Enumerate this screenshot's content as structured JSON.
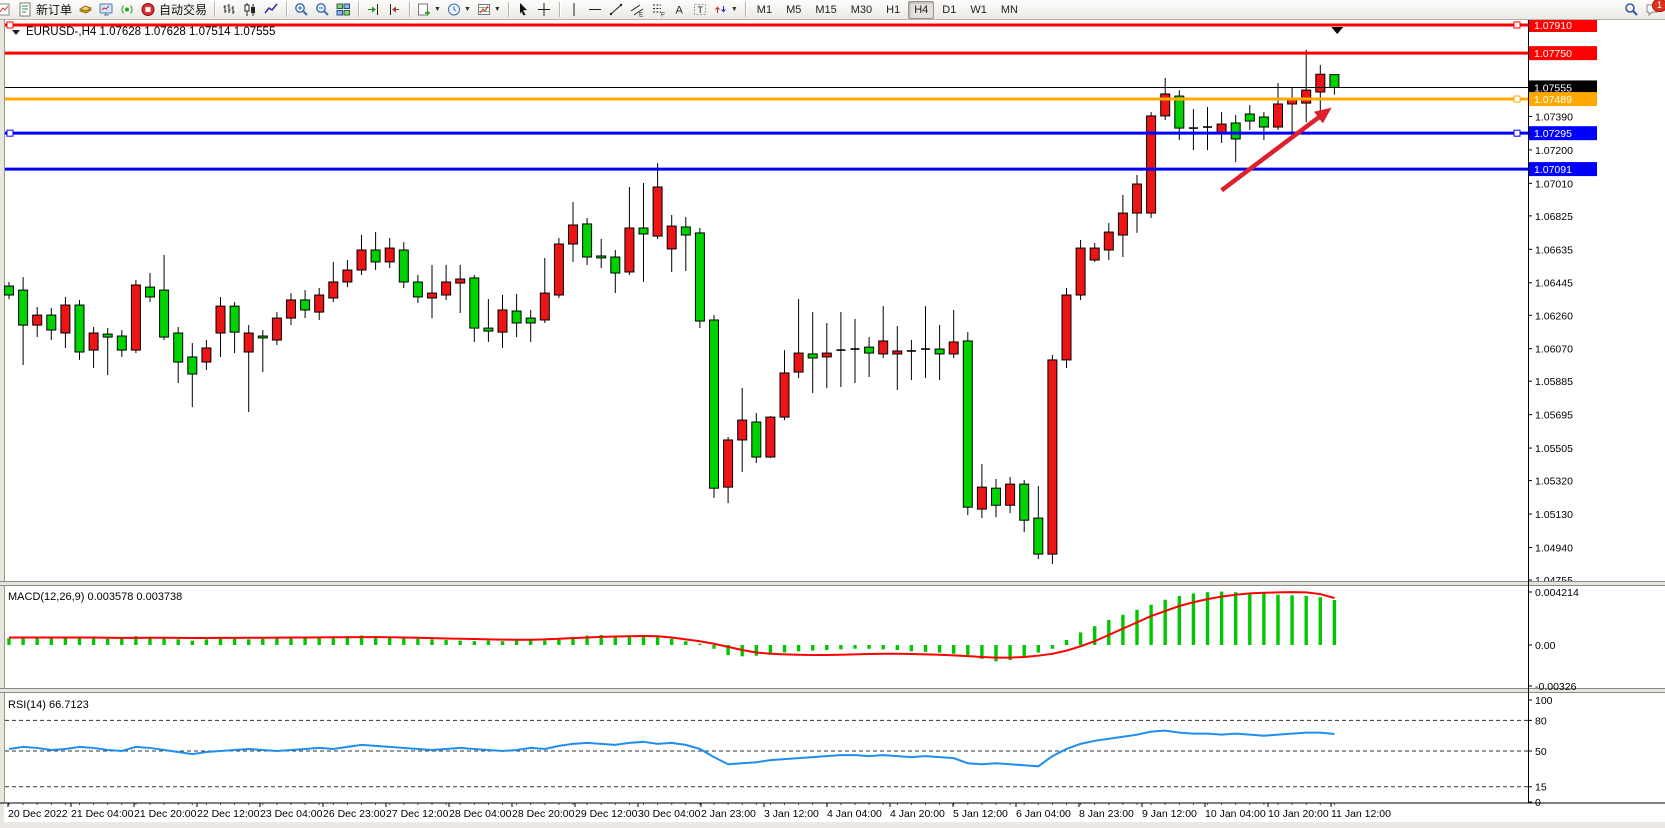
{
  "toolbar": {
    "groups": [
      {
        "items": [
          {
            "icon": "chart-doc-icon",
            "cut": true
          },
          {
            "icon": "new-order-icon",
            "label": "新订单"
          },
          {
            "icon": "new-chart-gold-icon"
          },
          {
            "icon": "market-watch-icon"
          },
          {
            "icon": "navigator-icon"
          },
          {
            "icon": "autotrading-icon",
            "label": "自动交易"
          }
        ]
      },
      {
        "items": [
          {
            "icon": "bar-chart-icon"
          },
          {
            "icon": "candle-chart-icon"
          },
          {
            "icon": "line-chart-icon"
          }
        ]
      },
      {
        "items": [
          {
            "icon": "zoom-in-icon"
          },
          {
            "icon": "zoom-out-icon"
          },
          {
            "icon": "tile-windows-icon"
          }
        ]
      },
      {
        "items": [
          {
            "icon": "auto-scroll-icon"
          },
          {
            "icon": "chart-shift-icon"
          }
        ]
      },
      {
        "items": [
          {
            "icon": "new-window-icon",
            "dropdown": true
          },
          {
            "icon": "period-icon",
            "dropdown": true
          },
          {
            "icon": "indicator-icon",
            "dropdown": true
          }
        ]
      },
      {
        "items": [
          {
            "icon": "cursor-icon"
          },
          {
            "icon": "crosshair-icon"
          }
        ]
      },
      {
        "items": [
          {
            "icon": "vline-icon"
          },
          {
            "icon": "hline-icon"
          },
          {
            "icon": "trendline-icon"
          },
          {
            "icon": "channel-icon"
          },
          {
            "icon": "fibo-icon"
          },
          {
            "icon": "text-icon"
          },
          {
            "icon": "label-icon"
          },
          {
            "icon": "arrows-icon",
            "dropdown": true
          }
        ]
      }
    ],
    "timeframes": [
      "M1",
      "M5",
      "M15",
      "M30",
      "H1",
      "H4",
      "D1",
      "W1",
      "MN"
    ],
    "active_timeframe": "H4",
    "right": [
      {
        "icon": "search-icon"
      },
      {
        "icon": "alerts-icon",
        "badge": "1"
      }
    ]
  },
  "chart_data": [
    {
      "id": "price",
      "type": "candlestick",
      "title": "EURUSD-,H4",
      "ohlc_readout": "1.07628 1.07628 1.07514 1.07555",
      "ylim": [
        1.04755,
        1.0791
      ],
      "y_ticks": [
        "1.07390",
        "1.07200",
        "1.07010",
        "1.06825",
        "1.06635",
        "1.06445",
        "1.06260",
        "1.06070",
        "1.05885",
        "1.05695",
        "1.05505",
        "1.05320",
        "1.05130",
        "1.04940",
        "1.04755"
      ],
      "h_lines": [
        {
          "price": 1.0791,
          "label": "1.07910",
          "color": "#ff0000",
          "width": 3,
          "handles": "both"
        },
        {
          "price": 1.0775,
          "label": "1.07750",
          "color": "#ff0000",
          "width": 3,
          "handles": "none"
        },
        {
          "price": 1.07555,
          "label": "1.07555",
          "color": "#000000",
          "width": 1,
          "handles": "none",
          "role": "bid-line"
        },
        {
          "price": 1.07489,
          "label": "1.07489",
          "color": "#ffa800",
          "width": 3,
          "handles": "right"
        },
        {
          "price": 1.07295,
          "label": "1.07295",
          "color": "#0000ff",
          "width": 3,
          "handles": "both"
        },
        {
          "price": 1.07091,
          "label": "1.07091",
          "color": "#0000ff",
          "width": 3,
          "handles": "none"
        }
      ],
      "bull_color": "#ec1414",
      "bear_color": "#00d200",
      "candles": [
        [
          1.06426,
          1.06449,
          1.06352,
          1.06375
        ],
        [
          1.06403,
          1.06477,
          1.05977,
          1.06204
        ],
        [
          1.06204,
          1.06307,
          1.06136,
          1.06261
        ],
        [
          1.06261,
          1.06301,
          1.06119,
          1.06176
        ],
        [
          1.06159,
          1.06364,
          1.06074,
          1.06318
        ],
        [
          1.06318,
          1.06347,
          1.06006,
          1.06051
        ],
        [
          1.06062,
          1.06193,
          1.0596,
          1.06159
        ],
        [
          1.06153,
          1.06187,
          1.0592,
          1.06136
        ],
        [
          1.06142,
          1.06176,
          1.06023,
          1.06062
        ],
        [
          1.06062,
          1.0646,
          1.06045,
          1.06432
        ],
        [
          1.0642,
          1.065,
          1.06335,
          1.06364
        ],
        [
          1.06403,
          1.06603,
          1.06119,
          1.06136
        ],
        [
          1.06159,
          1.06193,
          1.05875,
          1.05994
        ],
        [
          1.06023,
          1.06102,
          1.05738,
          1.05926
        ],
        [
          1.05994,
          1.06119,
          1.05949,
          1.06074
        ],
        [
          1.06159,
          1.06364,
          1.06023,
          1.06312
        ],
        [
          1.06312,
          1.06335,
          1.06045,
          1.06164
        ],
        [
          1.06051,
          1.06204,
          1.0571,
          1.06159
        ],
        [
          1.06142,
          1.06176,
          1.05937,
          1.06131
        ],
        [
          1.06119,
          1.06278,
          1.06091,
          1.06244
        ],
        [
          1.06244,
          1.06386,
          1.06204,
          1.06347
        ],
        [
          1.06347,
          1.06403,
          1.06244,
          1.0629
        ],
        [
          1.06278,
          1.06415,
          1.06233,
          1.06375
        ],
        [
          1.06358,
          1.06563,
          1.06335,
          1.06449
        ],
        [
          1.06449,
          1.06574,
          1.0642,
          1.06517
        ],
        [
          1.06517,
          1.06716,
          1.06489,
          1.06631
        ],
        [
          1.06631,
          1.06733,
          1.06517,
          1.06563
        ],
        [
          1.06563,
          1.06699,
          1.06529,
          1.06642
        ],
        [
          1.06631,
          1.06676,
          1.06415,
          1.06449
        ],
        [
          1.06449,
          1.06489,
          1.0633,
          1.06364
        ],
        [
          1.06358,
          1.06546,
          1.06244,
          1.06386
        ],
        [
          1.06375,
          1.06546,
          1.06347,
          1.06449
        ],
        [
          1.06443,
          1.06546,
          1.06273,
          1.06466
        ],
        [
          1.06472,
          1.06489,
          1.06108,
          1.06187
        ],
        [
          1.06187,
          1.06352,
          1.06108,
          1.0617
        ],
        [
          1.06164,
          1.06375,
          1.06074,
          1.0629
        ],
        [
          1.06284,
          1.06381,
          1.06136,
          1.06216
        ],
        [
          1.06244,
          1.0629,
          1.06108,
          1.06216
        ],
        [
          1.06233,
          1.06586,
          1.06216,
          1.06386
        ],
        [
          1.06375,
          1.06699,
          1.06358,
          1.06665
        ],
        [
          1.06665,
          1.06904,
          1.06563,
          1.06773
        ],
        [
          1.06779,
          1.06813,
          1.06546,
          1.06591
        ],
        [
          1.06597,
          1.06694,
          1.06529,
          1.06586
        ],
        [
          1.06591,
          1.06631,
          1.06386,
          1.065
        ],
        [
          1.06506,
          1.06989,
          1.06489,
          1.06756
        ],
        [
          1.06756,
          1.07012,
          1.06449,
          1.06722
        ],
        [
          1.0671,
          1.07125,
          1.06693,
          1.06989
        ],
        [
          1.06637,
          1.0683,
          1.06506,
          1.06767
        ],
        [
          1.06762,
          1.06818,
          1.06512,
          1.06716
        ],
        [
          1.06728,
          1.06756,
          1.06187,
          1.06227
        ],
        [
          1.06233,
          1.06261,
          1.05221,
          1.05277
        ],
        [
          1.05283,
          1.05568,
          1.05192,
          1.05551
        ],
        [
          1.05551,
          1.05847,
          1.05369,
          1.05664
        ],
        [
          1.05653,
          1.05704,
          1.0542,
          1.05454
        ],
        [
          1.05454,
          1.05687,
          1.05448,
          1.05681
        ],
        [
          1.05681,
          1.06062,
          1.05664,
          1.05932
        ],
        [
          1.05937,
          1.06352,
          1.05903,
          1.06045
        ],
        [
          1.0604,
          1.06278,
          1.05818,
          1.06017
        ],
        [
          1.06023,
          1.06216,
          1.05847,
          1.06045
        ],
        [
          1.06062,
          1.06278,
          1.05852,
          1.06062
        ],
        [
          1.06068,
          1.06239,
          1.05875,
          1.06068
        ],
        [
          1.06079,
          1.06136,
          1.05909,
          1.06045
        ],
        [
          1.0604,
          1.06312,
          1.06017,
          1.06114
        ],
        [
          1.0604,
          1.06199,
          1.05835,
          1.06057
        ],
        [
          1.06057,
          1.06119,
          1.05892,
          1.06057
        ],
        [
          1.06068,
          1.06312,
          1.05903,
          1.06068
        ],
        [
          1.06068,
          1.06204,
          1.05892,
          1.0604
        ],
        [
          1.0604,
          1.0629,
          1.06017,
          1.06108
        ],
        [
          1.06114,
          1.06164,
          1.05124,
          1.05169
        ],
        [
          1.05158,
          1.05414,
          1.05107,
          1.05283
        ],
        [
          1.05277,
          1.05329,
          1.05112,
          1.0518
        ],
        [
          1.0518,
          1.0534,
          1.05135,
          1.053
        ],
        [
          1.053,
          1.05323,
          1.05027,
          1.05095
        ],
        [
          1.05107,
          1.05289,
          1.04874,
          1.04902
        ],
        [
          1.04902,
          1.06034,
          1.04846,
          1.06006
        ],
        [
          1.06006,
          1.06415,
          1.0596,
          1.06375
        ],
        [
          1.06375,
          1.06688,
          1.06347,
          1.06642
        ],
        [
          1.06574,
          1.06671,
          1.06563,
          1.06642
        ],
        [
          1.06631,
          1.06784,
          1.06574,
          1.06733
        ],
        [
          1.06716,
          1.06944,
          1.06591,
          1.06841
        ],
        [
          1.06841,
          1.07057,
          1.06728,
          1.07006
        ],
        [
          1.06841,
          1.07415,
          1.06813,
          1.07393
        ],
        [
          1.07393,
          1.07609,
          1.0737,
          1.07518
        ],
        [
          1.07506,
          1.0754,
          1.07256,
          1.07324
        ],
        [
          1.07324,
          1.07432,
          1.07199,
          1.07324
        ],
        [
          1.0733,
          1.07444,
          1.07199,
          1.0733
        ],
        [
          1.07296,
          1.07415,
          1.07239,
          1.07347
        ],
        [
          1.07353,
          1.07398,
          1.07131,
          1.07262
        ],
        [
          1.07404,
          1.07455,
          1.07313,
          1.07364
        ],
        [
          1.07387,
          1.07415,
          1.07256,
          1.0733
        ],
        [
          1.0733,
          1.0758,
          1.07313,
          1.07461
        ],
        [
          1.07461,
          1.07557,
          1.07256,
          1.07484
        ],
        [
          1.07466,
          1.07768,
          1.07358,
          1.0754
        ],
        [
          1.07529,
          1.07683,
          1.0737,
          1.0763
        ],
        [
          1.07628,
          1.07628,
          1.07514,
          1.07555
        ]
      ],
      "x_labels": [
        "20 Dec 2022",
        "21 Dec 04:00",
        "21 Dec 20:00",
        "22 Dec 12:00",
        "23 Dec 04:00",
        "26 Dec 23:00",
        "27 Dec 12:00",
        "28 Dec 04:00",
        "28 Dec 20:00",
        "29 Dec 12:00",
        "30 Dec 04:00",
        "2 Jan 23:00",
        "3 Jan 12:00",
        "4 Jan 04:00",
        "4 Jan 20:00",
        "5 Jan 12:00",
        "6 Jan 04:00",
        "8 Jan 23:00",
        "9 Jan 12:00",
        "10 Jan 04:00",
        "10 Jan 20:00",
        "11 Jan 12:00"
      ],
      "annotations": {
        "trend_arrow": {
          "from_bar": 86.0,
          "from_price": 1.0697,
          "to_bar": 93.8,
          "to_price": 1.0744,
          "color": "#de1f2e"
        },
        "time_marker_bar": 94.2
      }
    },
    {
      "id": "macd",
      "type": "bar+line",
      "label": "MACD(12,26,9) 0.003578 0.003738",
      "levels": [
        "0.004214",
        "0.00",
        "-0.00326"
      ],
      "level_values": [
        0.004214,
        0.0,
        -0.00326
      ],
      "histogram_color": "#00c800",
      "signal_color": "#ff0000",
      "histogram": [
        0.00055,
        0.00062,
        0.00058,
        0.0006,
        0.00065,
        0.0006,
        0.00055,
        0.0005,
        0.00055,
        0.0007,
        0.00065,
        0.00055,
        0.00045,
        0.00035,
        0.00045,
        0.00055,
        0.0005,
        0.00045,
        0.0005,
        0.00055,
        0.0006,
        0.00055,
        0.0006,
        0.00065,
        0.0007,
        0.00075,
        0.0007,
        0.00065,
        0.0006,
        0.0005,
        0.00045,
        0.0004,
        0.00035,
        0.0003,
        0.00035,
        0.0003,
        0.00035,
        0.0004,
        0.00035,
        0.0005,
        0.00065,
        0.00075,
        0.0008,
        0.0007,
        0.00075,
        0.0008,
        0.0007,
        0.0005,
        0.0003,
        0.0001,
        -0.0003,
        -0.0008,
        -0.0009,
        -0.00085,
        -0.0007,
        -0.0006,
        -0.0005,
        -0.00045,
        -0.0004,
        -0.00035,
        -0.0003,
        -0.0003,
        -0.00035,
        -0.0004,
        -0.0005,
        -0.00055,
        -0.0006,
        -0.0007,
        -0.0008,
        -0.0011,
        -0.0013,
        -0.0012,
        -0.001,
        -0.0006,
        -0.0003,
        0.0004,
        0.001,
        0.0015,
        0.002,
        0.0024,
        0.0028,
        0.0032,
        0.0036,
        0.0039,
        0.0041,
        0.0042,
        0.00425,
        0.0042,
        0.00415,
        0.0041,
        0.004,
        0.00395,
        0.0039,
        0.0038,
        0.003578
      ],
      "signal": [
        0.0006,
        0.0006,
        0.0006,
        0.0006,
        0.0006,
        0.0006,
        0.0006,
        0.00058,
        0.00057,
        0.00057,
        0.00058,
        0.00058,
        0.00057,
        0.00056,
        0.00056,
        0.00057,
        0.00057,
        0.00058,
        0.00058,
        0.00059,
        0.0006,
        0.0006,
        0.00061,
        0.00062,
        0.00062,
        0.00063,
        0.00063,
        0.00062,
        0.0006,
        0.00058,
        0.00055,
        0.00052,
        0.0005,
        0.00048,
        0.00045,
        0.00043,
        0.00042,
        0.00042,
        0.00045,
        0.0005,
        0.00055,
        0.0006,
        0.00065,
        0.00068,
        0.0007,
        0.00072,
        0.0007,
        0.0006,
        0.00045,
        0.0003,
        0.0001,
        -0.00015,
        -0.0004,
        -0.0006,
        -0.0007,
        -0.00075,
        -0.00078,
        -0.0008,
        -0.0008,
        -0.00078,
        -0.00075,
        -0.00072,
        -0.0007,
        -0.0007,
        -0.00072,
        -0.00075,
        -0.00078,
        -0.00082,
        -0.00088,
        -0.00095,
        -0.001,
        -0.001,
        -0.00095,
        -0.00085,
        -0.0007,
        -0.00045,
        -0.0001,
        0.0003,
        0.0008,
        0.0013,
        0.0018,
        0.0023,
        0.0027,
        0.0031,
        0.0034,
        0.00365,
        0.00385,
        0.004,
        0.0041,
        0.00415,
        0.00418,
        0.0042,
        0.00418,
        0.00405,
        0.003738
      ]
    },
    {
      "id": "rsi",
      "type": "line",
      "label": "RSI(14) 66.7123",
      "line_color": "#1f8fee",
      "dashed_levels": [
        80,
        50,
        15
      ],
      "y_ticks": [
        "100",
        "80",
        "50",
        "15",
        "0"
      ],
      "y_tick_values": [
        100,
        80,
        50,
        15,
        0
      ],
      "values": [
        52,
        54,
        53,
        51,
        52,
        54,
        53,
        51,
        50,
        54,
        53,
        51,
        49,
        47,
        49,
        50,
        51,
        52,
        51,
        50,
        51,
        52,
        53,
        52,
        54,
        56,
        55,
        54,
        53,
        52,
        51,
        52,
        53,
        52,
        51,
        50,
        51,
        53,
        52,
        55,
        57,
        58,
        57,
        56,
        58,
        59,
        57,
        58,
        56,
        52,
        44,
        37,
        38,
        39,
        41,
        42,
        43,
        44,
        45,
        46,
        46,
        45,
        46,
        45,
        44,
        45,
        44,
        43,
        38,
        37,
        38,
        37,
        36,
        35,
        45,
        52,
        57,
        60,
        62,
        64,
        66,
        69,
        70,
        68,
        67,
        67,
        66,
        67,
        66,
        65,
        66,
        67,
        68,
        68,
        66.71
      ]
    }
  ]
}
